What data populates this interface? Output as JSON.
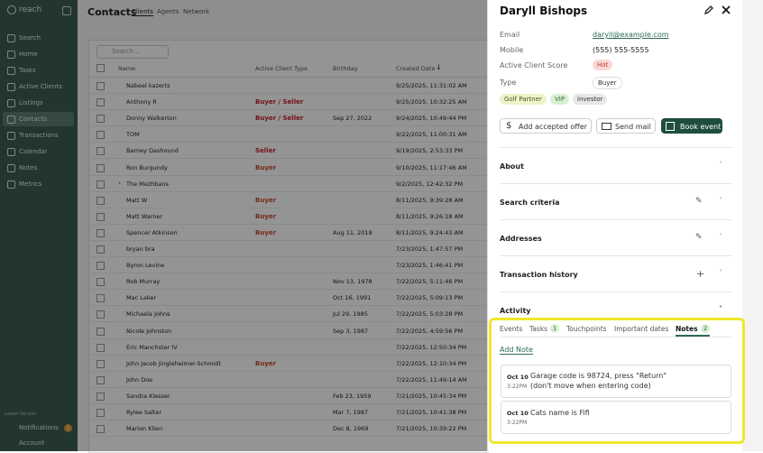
{
  "sidebar": {
    "brand": "reach",
    "nav": [
      "Search",
      "Home",
      "Tasks",
      "Active Clients",
      "Listings",
      "Contacts",
      "Transactions",
      "Calendar",
      "Notes",
      "Metrics"
    ],
    "active": "Contacts",
    "version": "Latest Version",
    "notifications": {
      "label": "Notifications",
      "count": 1
    },
    "account": "Account"
  },
  "contacts": {
    "title": "Contacts",
    "tabs": [
      "Clients",
      "Agents",
      "Network"
    ],
    "search_placeholder": "Search...",
    "columns": [
      "Name",
      "Active Client Type",
      "Birthday",
      "Created Date"
    ],
    "rows": [
      {
        "name": "Nabeel kazerts",
        "created": "9/25/2025, 11:31:02 AM"
      },
      {
        "name": "Anthony R",
        "type": "Buyer / Seller",
        "created": "9/25/2025, 10:32:25 AM"
      },
      {
        "name": "Donny Walkerton",
        "type": "Buyer / Seller",
        "birthday": "Sep 27, 2022",
        "created": "9/24/2025, 10:49:44 PM"
      },
      {
        "name": "TOM",
        "created": "9/22/2025, 11:00:31 AM"
      },
      {
        "name": "Barney Dashound",
        "type": "Seller",
        "created": "9/19/2025, 2:53:33 PM"
      },
      {
        "name": "Ron Burgundy",
        "type": "Buyer",
        "created": "9/10/2025, 11:17:46 AM"
      },
      {
        "name": "The Mezhbans",
        "created": "9/2/2025, 12:42:32 PM"
      },
      {
        "name": "Matt W",
        "type": "Buyer",
        "created": "8/11/2025, 9:39:28 AM"
      },
      {
        "name": "Matt Warner",
        "type": "Buyer",
        "created": "8/11/2025, 9:26:18 AM"
      },
      {
        "name": "Spencer Atkinson",
        "type": "Buyer",
        "birthday": "Aug 11, 2018",
        "created": "8/11/2025, 9:24:43 AM"
      },
      {
        "name": "bryan bra",
        "created": "7/23/2025, 1:47:57 PM"
      },
      {
        "name": "Byron Levine",
        "created": "7/23/2025, 1:46:41 PM"
      },
      {
        "name": "Rob Murray",
        "birthday": "Nov 13, 1978",
        "created": "7/22/2025, 5:11:46 PM"
      },
      {
        "name": "Mac Laker",
        "birthday": "Oct 16, 1991",
        "created": "7/22/2025, 5:09:13 PM"
      },
      {
        "name": "Michaela Johns",
        "birthday": "Jul 29, 1985",
        "created": "7/22/2025, 5:03:28 PM"
      },
      {
        "name": "Nicole Johnston",
        "birthday": "Sep 3, 1987",
        "created": "7/22/2025, 4:59:56 PM"
      },
      {
        "name": "Eric Manchster IV",
        "created": "7/22/2025, 12:50:34 PM"
      },
      {
        "name": "John Jacob Jingleheimer-Schmidt",
        "type": "Buyer",
        "created": "7/22/2025, 12:10:34 PM"
      },
      {
        "name": "John Doe",
        "created": "7/22/2025, 11:49:14 AM"
      },
      {
        "name": "Sandra Klesser",
        "birthday": "Feb 23, 1959",
        "created": "7/21/2025, 10:45:34 PM"
      },
      {
        "name": "Rylee Salter",
        "birthday": "Mar 7, 1987",
        "created": "7/21/2025, 10:41:38 PM"
      },
      {
        "name": "Marion Klien",
        "birthday": "Dec 8, 1969",
        "created": "7/21/2025, 10:39:22 PM"
      }
    ]
  },
  "contact_panel": {
    "name": "Daryll Bishops",
    "fields": [
      {
        "label": "Email",
        "value": "daryll@example.com"
      },
      {
        "label": "Mobile",
        "value": "(555) 555-5555"
      },
      {
        "label": "Active Client Score",
        "value": "Hot"
      },
      {
        "label": "Type",
        "value": "Buyer"
      }
    ],
    "tags": [
      "Golf Partner",
      "VIP",
      "investor"
    ],
    "buttons": [
      "Add accepted offer",
      "Send mail",
      "Book event"
    ],
    "sections": [
      "About",
      "Search criteria",
      "Addresses",
      "Transaction history",
      "Activity"
    ],
    "activity_tabs": [
      {
        "label": "Events"
      },
      {
        "label": "Tasks",
        "count": 1
      },
      {
        "label": "Touchpoints"
      },
      {
        "label": "Important dates"
      },
      {
        "label": "Notes",
        "count": 2
      }
    ],
    "active_tab": "Notes",
    "add_note": "Add Note",
    "notes": [
      {
        "date": "Oct 10",
        "time": "3:22PM",
        "text": [
          "Garage code is 98724, press \"Return\"",
          "(don't move when entering code)"
        ]
      },
      {
        "date": "Oct 10",
        "time": "3:22PM",
        "text": [
          "Cats name is Fifi"
        ]
      }
    ]
  }
}
